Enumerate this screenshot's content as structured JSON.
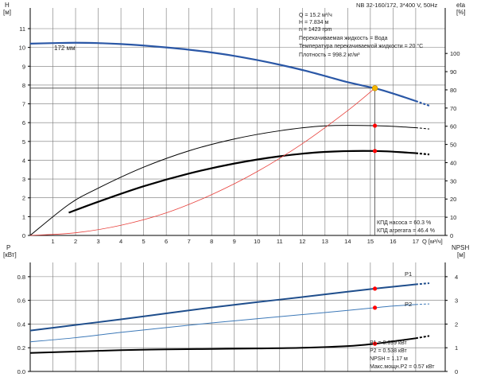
{
  "header": {
    "model": "NB 32-160/172, 3*400 V, 50Hz"
  },
  "info": {
    "lines": [
      "Q = 15.2 м³/ч",
      "H = 7.834 м",
      "n = 1423 rpm",
      "Перекачиваемая жидкость = Вода",
      "Температура перекачиваемой жидкости = 20 °C",
      "Плотность = 998.2 кг/м³"
    ]
  },
  "efficiency_info": {
    "lines": [
      "КПД насоса = 60.3 %",
      "КПД агрегата = 46.4 %"
    ]
  },
  "power_info": {
    "lines": [
      "P1 = 0.699 кВт",
      "P2 = 0.538 кВт",
      "NPSH = 1.17 м",
      "Макс.мощн.P2 = 0.57 кВт"
    ]
  },
  "colors": {
    "head_curve": "#2a57a6",
    "p1_curve": "#1f4e8c",
    "p2_curve": "#3d79b8",
    "eta_curves": "#000000",
    "system_curve": "#e8413c",
    "operating_point": "#ff0000",
    "duty_point": "#f5b800",
    "grid": "#777777"
  },
  "chart_data": [
    {
      "type": "line",
      "title": "",
      "x_axis": {
        "label": "Q [м³/ч]",
        "range": [
          0,
          18.3
        ],
        "ticks": [
          1,
          2,
          3,
          4,
          5,
          6,
          7,
          8,
          9,
          10,
          11,
          12,
          13,
          14,
          15,
          16,
          17
        ]
      },
      "y_left": {
        "label": "H\n[м]",
        "range": [
          0,
          12.1
        ],
        "ticks": [
          0,
          1,
          2,
          3,
          4,
          5,
          6,
          7,
          8,
          9,
          10,
          11
        ]
      },
      "y_right": {
        "label": "eta\n[%]",
        "range": [
          0,
          125
        ],
        "ticks": [
          0,
          10,
          20,
          30,
          40,
          50,
          60,
          70,
          80,
          90,
          100
        ]
      },
      "grid": true,
      "series": [
        {
          "name": "172 мм",
          "role": "head",
          "axis": "left",
          "x": [
            0,
            1,
            2,
            3,
            4,
            5,
            6,
            7,
            8,
            9,
            10,
            11,
            12,
            13,
            14,
            15,
            15.2,
            16,
            17
          ],
          "y": [
            10.2,
            10.23,
            10.25,
            10.23,
            10.18,
            10.1,
            10.0,
            9.88,
            9.73,
            9.55,
            9.33,
            9.08,
            8.8,
            8.48,
            8.15,
            7.88,
            7.834,
            7.55,
            7.15
          ],
          "extension_x": [
            17,
            17.6
          ],
          "extension_y": [
            7.15,
            6.9
          ]
        },
        {
          "name": "",
          "role": "eta pump",
          "axis": "right",
          "x": [
            0,
            1.7,
            3,
            5,
            7,
            9,
            11,
            13,
            15.2,
            17
          ],
          "y": [
            0,
            17,
            26,
            37.5,
            46.5,
            53,
            57.5,
            60.2,
            60.3,
            59.2
          ],
          "extension_x": [
            17,
            17.6
          ],
          "extension_y": [
            59.2,
            58.5
          ]
        },
        {
          "name": "",
          "role": "eta unit",
          "axis": "right",
          "x": [
            1.7,
            3,
            5,
            7,
            9,
            11,
            13,
            15.2,
            17
          ],
          "y": [
            12.5,
            18.5,
            27,
            34,
            39.5,
            43.5,
            45.9,
            46.4,
            45.2
          ],
          "extension_x": [
            17,
            17.6
          ],
          "extension_y": [
            45.2,
            44.5
          ]
        },
        {
          "name": "",
          "role": "system curve",
          "axis": "left",
          "x": [
            0,
            2,
            4,
            6,
            8,
            10,
            12,
            14,
            15.2
          ],
          "y": [
            0,
            0.14,
            0.54,
            1.2,
            2.17,
            3.39,
            4.88,
            6.64,
            7.834
          ]
        }
      ],
      "operating_points": [
        {
          "series": "head",
          "x": 15.2,
          "y": 7.834
        },
        {
          "series": "eta pump",
          "x": 15.2,
          "y": 60.3
        },
        {
          "series": "eta unit",
          "x": 15.2,
          "y": 46.4
        }
      ],
      "crosshair": {
        "x": 15.2,
        "y": 7.834
      }
    },
    {
      "type": "line",
      "title": "",
      "x_axis": {
        "range": [
          0,
          18.3
        ]
      },
      "y_left": {
        "label": "P\n[кВт]",
        "range": [
          0,
          0.92
        ],
        "ticks": [
          0,
          0.2,
          0.4,
          0.6,
          0.8
        ]
      },
      "y_right": {
        "label": "NPSH\n[м]",
        "range": [
          0,
          4.6
        ],
        "ticks": [
          0,
          1,
          2,
          3,
          4
        ]
      },
      "grid": true,
      "series": [
        {
          "name": "P1",
          "axis": "left",
          "x": [
            0,
            1.7,
            4,
            6,
            8,
            10,
            12,
            14,
            15.2,
            16,
            17
          ],
          "y": [
            0.345,
            0.385,
            0.44,
            0.49,
            0.54,
            0.585,
            0.628,
            0.673,
            0.699,
            0.715,
            0.735
          ],
          "extension_x": [
            17,
            17.6
          ],
          "extension_y": [
            0.735,
            0.745
          ]
        },
        {
          "name": "P2",
          "axis": "left",
          "x": [
            0,
            2,
            4,
            6,
            8,
            10,
            12,
            14,
            15.2,
            16,
            17
          ],
          "y": [
            0.25,
            0.285,
            0.33,
            0.37,
            0.41,
            0.445,
            0.48,
            0.515,
            0.538,
            0.552,
            0.565
          ],
          "extension_x": [
            17,
            17.6
          ],
          "extension_y": [
            0.565,
            0.57
          ]
        },
        {
          "name": "",
          "role": "NPSH",
          "axis": "right",
          "x": [
            0,
            1.7,
            4,
            6,
            8,
            10,
            12,
            14,
            15.2,
            16,
            17
          ],
          "y": [
            0.78,
            0.83,
            0.9,
            0.93,
            0.95,
            0.97,
            1.0,
            1.07,
            1.17,
            1.27,
            1.4
          ],
          "extension_x": [
            17,
            17.6
          ],
          "extension_y": [
            1.4,
            1.5
          ]
        }
      ],
      "operating_points": [
        {
          "series": "P1",
          "x": 15.2,
          "y": 0.699
        },
        {
          "series": "P2",
          "x": 15.2,
          "y": 0.538
        },
        {
          "series": "NPSH",
          "x": 15.2,
          "y": 1.17
        }
      ]
    }
  ]
}
